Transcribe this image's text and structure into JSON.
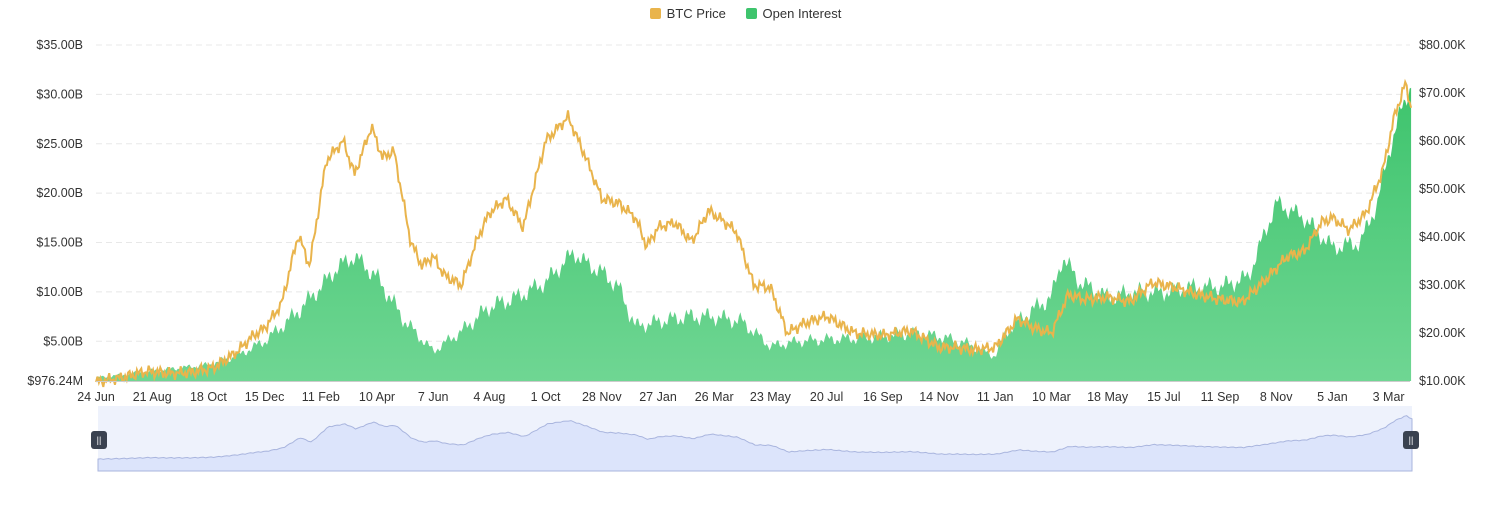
{
  "legend": {
    "price_label": "BTC Price",
    "oi_label": "Open Interest"
  },
  "colors": {
    "price": "#E9B44C",
    "oi": "#3EC46D",
    "oi_light": "#6FD693",
    "grid": "#E8E8E8",
    "navigator_fill": "#DCE4FB",
    "navigator_line": "#A9B5DE",
    "navigator_bg": "#EEF2FC"
  },
  "chart_data": {
    "type": "area",
    "x_ticks": [
      "24 Jun",
      "21 Aug",
      "18 Oct",
      "15 Dec",
      "11 Feb",
      "10 Apr",
      "7 Jun",
      "4 Aug",
      "1 Oct",
      "28 Nov",
      "27 Jan",
      "26 Mar",
      "23 May",
      "20 Jul",
      "16 Sep",
      "14 Nov",
      "11 Jan",
      "10 Mar",
      "18 May",
      "15 Jul",
      "11 Sep",
      "8 Nov",
      "5 Jan",
      "3 Mar"
    ],
    "y_left": {
      "ticks": [
        "$976.24M",
        "$5.00B",
        "$10.00B",
        "$15.00B",
        "$20.00B",
        "$25.00B",
        "$30.00B",
        "$35.00B"
      ],
      "tick_values": [
        0.97624,
        5,
        10,
        15,
        20,
        25,
        30,
        35
      ],
      "min": 0.97624,
      "max": 35,
      "unit": "B"
    },
    "y_right": {
      "ticks": [
        "$10.00K",
        "$20.00K",
        "$30.00K",
        "$40.00K",
        "$50.00K",
        "$60.00K",
        "$70.00K",
        "$80.00K"
      ],
      "tick_values": [
        10,
        20,
        30,
        40,
        50,
        60,
        70,
        80
      ],
      "min": 10,
      "max": 80,
      "unit": "K"
    },
    "series": [
      {
        "name": "Open Interest",
        "axis": "left",
        "kind": "area",
        "t": [
          0,
          0.5,
          1,
          1.5,
          2,
          2.5,
          3,
          3.5,
          4,
          4.3,
          4.6,
          5,
          5.5,
          6,
          6.5,
          7,
          7.5,
          8,
          8.5,
          8.7,
          9,
          9.3,
          9.6,
          10,
          10.5,
          11,
          11.5,
          12,
          12.5,
          13,
          13.5,
          14,
          14.5,
          15,
          15.5,
          16,
          16.2,
          16.5,
          17,
          17.2,
          17.5,
          18,
          18.5,
          19,
          19.5,
          20,
          20.5,
          21,
          21.5,
          22,
          22.5,
          22.8,
          23,
          23.2,
          23.4
        ],
        "values": [
          1.3,
          1.6,
          2.0,
          2.3,
          2.6,
          3.5,
          5.0,
          7.5,
          10.5,
          12.5,
          13.6,
          11.5,
          7.0,
          4.0,
          6.0,
          8.5,
          9.5,
          11.0,
          14.0,
          13.0,
          12.0,
          10.5,
          6.5,
          7.0,
          7.5,
          7.5,
          7.0,
          4.5,
          5.0,
          5.2,
          5.3,
          5.5,
          5.8,
          5.5,
          4.8,
          3.5,
          6.0,
          7.5,
          9.5,
          13.5,
          11.0,
          9.5,
          10.0,
          10.0,
          10.5,
          10.5,
          11.5,
          19.0,
          17.5,
          14.5,
          15.0,
          19.0,
          24.0,
          28.0,
          31.0
        ]
      },
      {
        "name": "BTC Price",
        "axis": "right",
        "kind": "line",
        "t": [
          0,
          0.5,
          0.9,
          1.3,
          1.7,
          2.1,
          2.5,
          2.8,
          3.0,
          3.3,
          3.6,
          3.8,
          4.1,
          4.4,
          4.6,
          4.9,
          5.1,
          5.3,
          5.6,
          5.8,
          6.0,
          6.2,
          6.5,
          6.8,
          7.0,
          7.3,
          7.6,
          8.0,
          8.4,
          8.7,
          9.0,
          9.3,
          9.6,
          9.8,
          10.0,
          10.3,
          10.6,
          10.9,
          11.2,
          11.4,
          11.7,
          12.0,
          12.3,
          12.6,
          13.0,
          13.5,
          14.0,
          14.5,
          15.0,
          15.3,
          15.6,
          16.0,
          16.4,
          16.7,
          17.0,
          17.3,
          17.6,
          18.0,
          18.4,
          18.8,
          19.2,
          19.6,
          20.0,
          20.4,
          20.8,
          21.2,
          21.5,
          21.8,
          22.0,
          22.3,
          22.6,
          22.9,
          23.1,
          23.3,
          23.4
        ],
        "values": [
          9.8,
          10.8,
          12.0,
          11.6,
          11.8,
          12.8,
          16.0,
          19.5,
          21.0,
          26.0,
          40.5,
          34.0,
          56.0,
          60.0,
          53.0,
          63.0,
          56.5,
          58.0,
          39.0,
          34.0,
          36.0,
          32.0,
          30.0,
          40.0,
          45.0,
          48.0,
          42.0,
          60.0,
          65.0,
          57.0,
          48.0,
          47.0,
          44.0,
          38.0,
          42.0,
          43.0,
          39.0,
          45.5,
          43.0,
          41.0,
          30.0,
          29.5,
          20.0,
          22.0,
          23.5,
          20.0,
          19.5,
          20.5,
          17.0,
          17.0,
          16.5,
          17.0,
          23.0,
          21.0,
          20.0,
          28.0,
          27.0,
          27.5,
          26.5,
          30.5,
          29.5,
          28.0,
          27.0,
          26.5,
          31.0,
          36.0,
          37.0,
          43.0,
          44.0,
          41.5,
          45.0,
          54.0,
          65.0,
          72.0,
          67.0
        ]
      }
    ],
    "title": "",
    "xlabel": "",
    "ylabel": "",
    "grid": true,
    "legend_position": "top-center"
  }
}
